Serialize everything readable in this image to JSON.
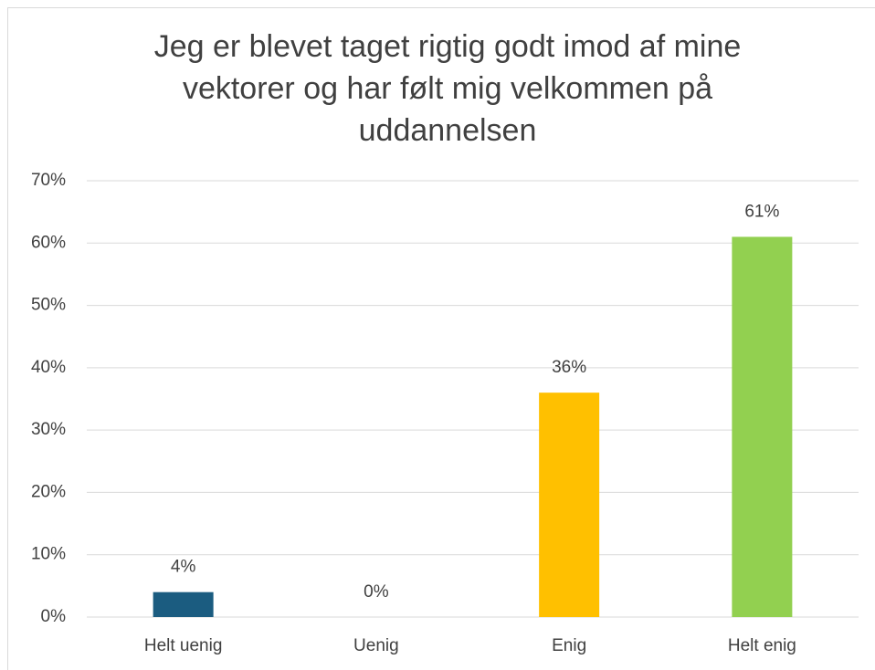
{
  "chart_data": {
    "type": "bar",
    "title": "Jeg er blevet taget rigtig godt imod af mine vektorer og har følt mig velkommen på uddannelsen",
    "categories": [
      "Helt uenig",
      "Uenig",
      "Enig",
      "Helt enig"
    ],
    "values": [
      4,
      0,
      36,
      61
    ],
    "value_labels": [
      "4%",
      "0%",
      "36%",
      "61%"
    ],
    "colors": [
      "#1b5c80",
      "#1b5c80",
      "#ffc000",
      "#92d050"
    ],
    "ylim": [
      0,
      70
    ],
    "yticks": [
      {
        "value": 0,
        "label": "0%"
      },
      {
        "value": 10,
        "label": "10%"
      },
      {
        "value": 20,
        "label": "20%"
      },
      {
        "value": 30,
        "label": "30%"
      },
      {
        "value": 40,
        "label": "40%"
      },
      {
        "value": 50,
        "label": "50%"
      },
      {
        "value": 60,
        "label": "60%"
      },
      {
        "value": 70,
        "label": "70%"
      }
    ],
    "grid": true
  }
}
